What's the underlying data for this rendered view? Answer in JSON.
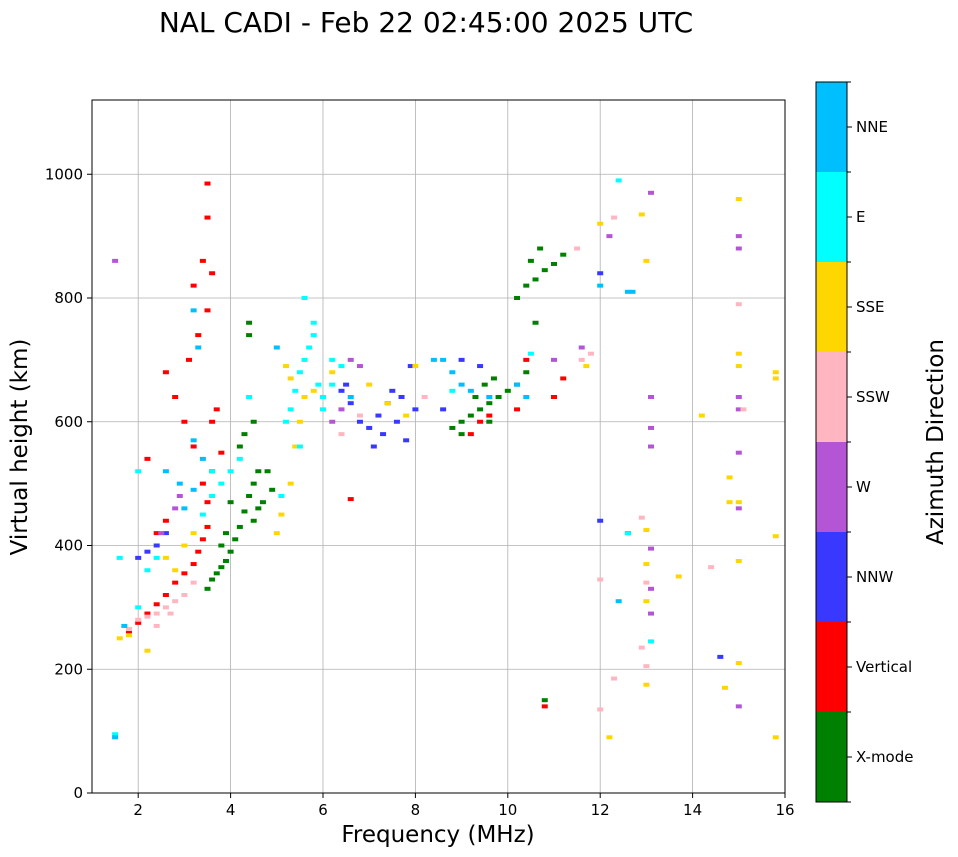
{
  "chart_data": {
    "type": "scatter",
    "title": "NAL CADI - Feb 22 02:45:00 2025 UTC",
    "xlabel": "Frequency (MHz)",
    "ylabel": "Virtual height (km)",
    "xlim": [
      1,
      16
    ],
    "ylim": [
      0,
      1120
    ],
    "xticks": [
      2,
      4,
      6,
      8,
      10,
      12,
      14,
      16
    ],
    "yticks": [
      0,
      200,
      400,
      600,
      800,
      1000
    ],
    "grid": true,
    "colorbar": {
      "label": "Azimuth Direction",
      "categories": [
        "X-mode",
        "Vertical",
        "NNW",
        "W",
        "SSW",
        "SSE",
        "E",
        "NNE"
      ],
      "colors": [
        "#008000",
        "#ff0000",
        "#3838ff",
        "#b455d6",
        "#ffb6c1",
        "#ffd700",
        "#00ffff",
        "#00bfff"
      ]
    },
    "series": [
      {
        "name": "X-mode",
        "points": [
          [
            3.5,
            330
          ],
          [
            3.6,
            345
          ],
          [
            3.7,
            355
          ],
          [
            3.8,
            365
          ],
          [
            3.9,
            375
          ],
          [
            4.0,
            390
          ],
          [
            4.1,
            410
          ],
          [
            4.2,
            430
          ],
          [
            4.3,
            455
          ],
          [
            4.4,
            480
          ],
          [
            4.5,
            500
          ],
          [
            4.6,
            520
          ],
          [
            4.2,
            560
          ],
          [
            4.3,
            580
          ],
          [
            4.5,
            600
          ],
          [
            4.7,
            470
          ],
          [
            4.8,
            520
          ],
          [
            4.9,
            490
          ],
          [
            4.0,
            470
          ],
          [
            3.9,
            420
          ],
          [
            3.8,
            400
          ],
          [
            4.5,
            440
          ],
          [
            4.6,
            460
          ],
          [
            4.4,
            740
          ],
          [
            4.4,
            760
          ],
          [
            8.8,
            590
          ],
          [
            9.0,
            600
          ],
          [
            9.2,
            610
          ],
          [
            9.4,
            620
          ],
          [
            9.6,
            630
          ],
          [
            9.8,
            640
          ],
          [
            10.0,
            650
          ],
          [
            10.2,
            660
          ],
          [
            10.4,
            680
          ],
          [
            9.3,
            640
          ],
          [
            9.5,
            660
          ],
          [
            9.7,
            670
          ],
          [
            10.2,
            800
          ],
          [
            10.4,
            820
          ],
          [
            10.6,
            830
          ],
          [
            10.8,
            845
          ],
          [
            11.0,
            855
          ],
          [
            11.2,
            870
          ],
          [
            10.5,
            860
          ],
          [
            10.7,
            880
          ],
          [
            10.8,
            150
          ],
          [
            10.6,
            760
          ],
          [
            9.0,
            580
          ],
          [
            9.6,
            600
          ]
        ]
      },
      {
        "name": "Vertical",
        "points": [
          [
            1.8,
            260
          ],
          [
            2.0,
            275
          ],
          [
            2.2,
            290
          ],
          [
            2.4,
            305
          ],
          [
            2.6,
            320
          ],
          [
            2.8,
            340
          ],
          [
            3.0,
            355
          ],
          [
            3.2,
            370
          ],
          [
            3.3,
            390
          ],
          [
            3.4,
            410
          ],
          [
            3.5,
            430
          ],
          [
            3.5,
            470
          ],
          [
            3.4,
            500
          ],
          [
            3.6,
            520
          ],
          [
            3.2,
            560
          ],
          [
            3.0,
            600
          ],
          [
            2.8,
            640
          ],
          [
            2.6,
            680
          ],
          [
            3.1,
            700
          ],
          [
            3.3,
            740
          ],
          [
            3.5,
            780
          ],
          [
            3.4,
            860
          ],
          [
            3.5,
            930
          ],
          [
            3.5,
            985
          ],
          [
            3.6,
            840
          ],
          [
            3.7,
            620
          ],
          [
            3.6,
            600
          ],
          [
            3.8,
            550
          ],
          [
            2.4,
            420
          ],
          [
            2.6,
            440
          ],
          [
            9.2,
            580
          ],
          [
            9.4,
            600
          ],
          [
            9.6,
            610
          ],
          [
            10.2,
            620
          ],
          [
            11.0,
            640
          ],
          [
            10.8,
            140
          ],
          [
            10.4,
            700
          ],
          [
            11.2,
            670
          ],
          [
            6.6,
            475
          ],
          [
            3.2,
            820
          ],
          [
            2.2,
            540
          ]
        ]
      },
      {
        "name": "NNW",
        "points": [
          [
            2.0,
            380
          ],
          [
            2.2,
            390
          ],
          [
            2.4,
            400
          ],
          [
            2.6,
            420
          ],
          [
            6.4,
            650
          ],
          [
            6.6,
            630
          ],
          [
            6.8,
            600
          ],
          [
            7.0,
            590
          ],
          [
            7.2,
            610
          ],
          [
            7.4,
            630
          ],
          [
            7.6,
            600
          ],
          [
            7.8,
            570
          ],
          [
            8.0,
            620
          ],
          [
            7.1,
            560
          ],
          [
            7.3,
            580
          ],
          [
            7.5,
            650
          ],
          [
            7.9,
            690
          ],
          [
            8.6,
            620
          ],
          [
            9.0,
            700
          ],
          [
            9.4,
            690
          ],
          [
            12.0,
            440
          ],
          [
            12.0,
            840
          ],
          [
            12.6,
            420
          ],
          [
            14.6,
            220
          ],
          [
            6.5,
            660
          ],
          [
            7.7,
            640
          ]
        ]
      },
      {
        "name": "W",
        "points": [
          [
            2.5,
            420
          ],
          [
            2.8,
            460
          ],
          [
            2.9,
            480
          ],
          [
            1.5,
            860
          ],
          [
            6.2,
            600
          ],
          [
            6.4,
            620
          ],
          [
            6.6,
            700
          ],
          [
            6.8,
            690
          ],
          [
            11.0,
            700
          ],
          [
            13.1,
            970
          ],
          [
            13.1,
            640
          ],
          [
            13.1,
            590
          ],
          [
            13.1,
            560
          ],
          [
            13.1,
            395
          ],
          [
            13.1,
            330
          ],
          [
            13.1,
            290
          ],
          [
            15.0,
            900
          ],
          [
            15.0,
            880
          ],
          [
            15.0,
            640
          ],
          [
            15.0,
            620
          ],
          [
            15.0,
            550
          ],
          [
            15.0,
            460
          ],
          [
            15.0,
            140
          ],
          [
            12.2,
            900
          ],
          [
            11.6,
            720
          ]
        ]
      },
      {
        "name": "SSW",
        "points": [
          [
            1.8,
            265
          ],
          [
            2.0,
            280
          ],
          [
            2.2,
            285
          ],
          [
            2.4,
            290
          ],
          [
            2.6,
            300
          ],
          [
            2.8,
            310
          ],
          [
            3.0,
            320
          ],
          [
            3.2,
            340
          ],
          [
            2.4,
            270
          ],
          [
            2.7,
            290
          ],
          [
            11.5,
            880
          ],
          [
            11.6,
            700
          ],
          [
            11.8,
            710
          ],
          [
            12.0,
            345
          ],
          [
            12.0,
            135
          ],
          [
            12.3,
            930
          ],
          [
            12.3,
            185
          ],
          [
            12.9,
            445
          ],
          [
            12.9,
            235
          ],
          [
            13.0,
            340
          ],
          [
            13.0,
            205
          ],
          [
            14.4,
            365
          ],
          [
            15.0,
            790
          ],
          [
            15.1,
            620
          ],
          [
            6.4,
            580
          ],
          [
            6.8,
            610
          ],
          [
            8.2,
            640
          ]
        ]
      },
      {
        "name": "SSE",
        "points": [
          [
            1.6,
            250
          ],
          [
            1.8,
            255
          ],
          [
            2.2,
            230
          ],
          [
            2.6,
            380
          ],
          [
            2.8,
            360
          ],
          [
            3.0,
            400
          ],
          [
            3.2,
            420
          ],
          [
            5.0,
            420
          ],
          [
            5.1,
            450
          ],
          [
            5.3,
            500
          ],
          [
            5.4,
            560
          ],
          [
            5.5,
            600
          ],
          [
            5.6,
            640
          ],
          [
            5.3,
            670
          ],
          [
            5.2,
            690
          ],
          [
            5.8,
            650
          ],
          [
            6.2,
            680
          ],
          [
            7.0,
            660
          ],
          [
            7.4,
            630
          ],
          [
            7.8,
            610
          ],
          [
            8.0,
            690
          ],
          [
            12.0,
            920
          ],
          [
            12.2,
            90
          ],
          [
            12.9,
            935
          ],
          [
            13.0,
            860
          ],
          [
            13.0,
            425
          ],
          [
            13.0,
            370
          ],
          [
            13.0,
            310
          ],
          [
            13.0,
            175
          ],
          [
            13.7,
            350
          ],
          [
            14.2,
            610
          ],
          [
            14.7,
            170
          ],
          [
            14.8,
            510
          ],
          [
            14.8,
            470
          ],
          [
            15.0,
            960
          ],
          [
            15.0,
            710
          ],
          [
            15.0,
            690
          ],
          [
            15.0,
            470
          ],
          [
            15.0,
            375
          ],
          [
            15.0,
            210
          ],
          [
            15.8,
            680
          ],
          [
            15.8,
            670
          ],
          [
            15.8,
            415
          ],
          [
            15.8,
            90
          ],
          [
            11.7,
            690
          ]
        ]
      },
      {
        "name": "E",
        "points": [
          [
            1.5,
            95
          ],
          [
            1.6,
            380
          ],
          [
            2.0,
            300
          ],
          [
            2.2,
            360
          ],
          [
            2.4,
            380
          ],
          [
            3.4,
            450
          ],
          [
            3.6,
            480
          ],
          [
            3.8,
            500
          ],
          [
            4.0,
            520
          ],
          [
            4.2,
            540
          ],
          [
            5.2,
            600
          ],
          [
            5.3,
            620
          ],
          [
            5.4,
            650
          ],
          [
            5.5,
            680
          ],
          [
            5.6,
            700
          ],
          [
            5.7,
            720
          ],
          [
            5.8,
            740
          ],
          [
            5.9,
            660
          ],
          [
            6.0,
            640
          ],
          [
            6.2,
            660
          ],
          [
            6.4,
            690
          ],
          [
            5.6,
            800
          ],
          [
            5.8,
            760
          ],
          [
            6.2,
            700
          ],
          [
            6.0,
            620
          ],
          [
            5.5,
            560
          ],
          [
            5.1,
            480
          ],
          [
            12.4,
            990
          ],
          [
            12.6,
            420
          ],
          [
            13.1,
            245
          ],
          [
            2.0,
            520
          ],
          [
            3.6,
            520
          ],
          [
            4.4,
            640
          ],
          [
            8.8,
            650
          ],
          [
            10.5,
            710
          ]
        ]
      },
      {
        "name": "NNE",
        "points": [
          [
            1.5,
            90
          ],
          [
            1.7,
            270
          ],
          [
            2.6,
            520
          ],
          [
            2.9,
            500
          ],
          [
            3.0,
            460
          ],
          [
            3.2,
            490
          ],
          [
            3.4,
            540
          ],
          [
            3.2,
            570
          ],
          [
            3.3,
            720
          ],
          [
            3.2,
            780
          ],
          [
            8.6,
            700
          ],
          [
            8.8,
            680
          ],
          [
            9.0,
            660
          ],
          [
            9.2,
            650
          ],
          [
            9.6,
            640
          ],
          [
            10.2,
            660
          ],
          [
            10.4,
            640
          ],
          [
            12.6,
            810
          ],
          [
            12.7,
            810
          ],
          [
            12.4,
            310
          ],
          [
            12.0,
            820
          ],
          [
            8.4,
            700
          ],
          [
            6.6,
            640
          ],
          [
            5.0,
            720
          ]
        ]
      }
    ]
  }
}
